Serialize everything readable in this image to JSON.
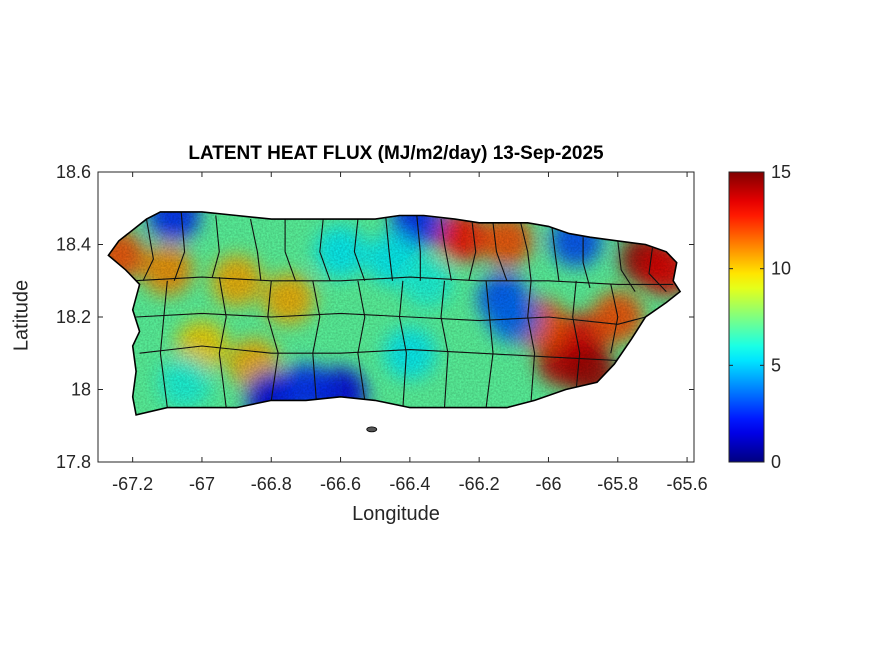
{
  "title": "LATENT HEAT FLUX (MJ/m2/day) 13-Sep-2025",
  "x_axis": {
    "label": "Longitude",
    "range": [
      -67.3,
      -65.58
    ],
    "ticks": [
      -67.2,
      -67,
      -66.8,
      -66.6,
      -66.4,
      -66.2,
      -66,
      -65.8,
      -65.6
    ],
    "tick_labels": [
      "-67.2",
      "-67",
      "-66.8",
      "-66.6",
      "-66.4",
      "-66.2",
      "-66",
      "-65.8",
      "-65.6"
    ]
  },
  "y_axis": {
    "label": "Latitude",
    "range": [
      17.8,
      18.6
    ],
    "ticks": [
      17.8,
      18.0,
      18.2,
      18.4,
      18.6
    ],
    "tick_labels": [
      "17.8",
      "18",
      "18.2",
      "18.4",
      "18.6"
    ]
  },
  "colorbar": {
    "colormap": "jet",
    "range": [
      0,
      15
    ],
    "ticks": [
      0,
      5,
      10,
      15
    ],
    "tick_labels": [
      "0",
      "5",
      "10",
      "15"
    ]
  },
  "map": {
    "region": "Puerto Rico",
    "background_value": 7,
    "outline": [
      [
        -67.27,
        18.37
      ],
      [
        -67.24,
        18.41
      ],
      [
        -67.2,
        18.44
      ],
      [
        -67.16,
        18.47
      ],
      [
        -67.12,
        18.49
      ],
      [
        -67.06,
        18.49
      ],
      [
        -67.0,
        18.49
      ],
      [
        -66.9,
        18.48
      ],
      [
        -66.8,
        18.47
      ],
      [
        -66.7,
        18.47
      ],
      [
        -66.6,
        18.47
      ],
      [
        -66.5,
        18.47
      ],
      [
        -66.43,
        18.48
      ],
      [
        -66.36,
        18.48
      ],
      [
        -66.27,
        18.47
      ],
      [
        -66.2,
        18.46
      ],
      [
        -66.14,
        18.46
      ],
      [
        -66.06,
        18.46
      ],
      [
        -66.0,
        18.45
      ],
      [
        -65.94,
        18.43
      ],
      [
        -65.88,
        18.42
      ],
      [
        -65.8,
        18.41
      ],
      [
        -65.72,
        18.4
      ],
      [
        -65.66,
        18.38
      ],
      [
        -65.63,
        18.35
      ],
      [
        -65.64,
        18.3
      ],
      [
        -65.62,
        18.27
      ],
      [
        -65.66,
        18.24
      ],
      [
        -65.72,
        18.2
      ],
      [
        -65.76,
        18.14
      ],
      [
        -65.81,
        18.07
      ],
      [
        -65.86,
        18.02
      ],
      [
        -65.95,
        18.0
      ],
      [
        -66.04,
        17.97
      ],
      [
        -66.12,
        17.95
      ],
      [
        -66.2,
        17.95
      ],
      [
        -66.3,
        17.95
      ],
      [
        -66.4,
        17.95
      ],
      [
        -66.5,
        17.97
      ],
      [
        -66.6,
        17.98
      ],
      [
        -66.7,
        17.97
      ],
      [
        -66.8,
        17.97
      ],
      [
        -66.9,
        17.95
      ],
      [
        -67.0,
        17.95
      ],
      [
        -67.1,
        17.95
      ],
      [
        -67.19,
        17.93
      ],
      [
        -67.2,
        17.98
      ],
      [
        -67.19,
        18.05
      ],
      [
        -67.2,
        18.12
      ],
      [
        -67.18,
        18.16
      ],
      [
        -67.2,
        18.22
      ],
      [
        -67.18,
        18.29
      ],
      [
        -67.22,
        18.33
      ],
      [
        -67.27,
        18.37
      ]
    ],
    "value_hotspots": [
      {
        "lon": -66.25,
        "lat": 18.42,
        "value": 13
      },
      {
        "lon": -66.12,
        "lat": 18.41,
        "value": 12
      },
      {
        "lon": -65.72,
        "lat": 18.36,
        "value": 14.5
      },
      {
        "lon": -65.66,
        "lat": 18.33,
        "value": 13.5
      },
      {
        "lon": -65.96,
        "lat": 18.08,
        "value": 14
      },
      {
        "lon": -65.9,
        "lat": 18.14,
        "value": 13.5
      },
      {
        "lon": -65.88,
        "lat": 18.05,
        "value": 14.5
      },
      {
        "lon": -66.02,
        "lat": 18.18,
        "value": 12
      },
      {
        "lon": -65.8,
        "lat": 18.2,
        "value": 12
      },
      {
        "lon": -67.24,
        "lat": 18.37,
        "value": 12
      },
      {
        "lon": -67.1,
        "lat": 18.33,
        "value": 11
      },
      {
        "lon": -66.9,
        "lat": 18.3,
        "value": 10.5
      },
      {
        "lon": -66.75,
        "lat": 18.25,
        "value": 10.5
      },
      {
        "lon": -66.85,
        "lat": 18.07,
        "value": 10.5
      },
      {
        "lon": -67.0,
        "lat": 18.12,
        "value": 10
      },
      {
        "lon": -66.8,
        "lat": 17.98,
        "value": 1.5
      },
      {
        "lon": -66.6,
        "lat": 17.99,
        "value": 1.5
      },
      {
        "lon": -66.7,
        "lat": 18.0,
        "value": 2.5
      },
      {
        "lon": -66.13,
        "lat": 18.25,
        "value": 3
      },
      {
        "lon": -66.1,
        "lat": 18.2,
        "value": 3.5
      },
      {
        "lon": -67.08,
        "lat": 18.48,
        "value": 2.5
      },
      {
        "lon": -66.38,
        "lat": 18.46,
        "value": 2.5
      },
      {
        "lon": -65.92,
        "lat": 18.41,
        "value": 3
      },
      {
        "lon": -66.6,
        "lat": 18.38,
        "value": 5.5
      },
      {
        "lon": -66.45,
        "lat": 18.36,
        "value": 5.5
      },
      {
        "lon": -66.35,
        "lat": 18.3,
        "value": 6
      },
      {
        "lon": -66.4,
        "lat": 18.1,
        "value": 5.5
      },
      {
        "lon": -67.05,
        "lat": 18.02,
        "value": 6
      }
    ],
    "municipality_boundaries": [
      [
        [
          -67.16,
          18.47
        ],
        [
          -67.14,
          18.36
        ],
        [
          -67.17,
          18.3
        ]
      ],
      [
        [
          -67.06,
          18.49
        ],
        [
          -67.05,
          18.38
        ],
        [
          -67.08,
          18.3
        ]
      ],
      [
        [
          -66.96,
          18.48
        ],
        [
          -66.95,
          18.38
        ],
        [
          -66.97,
          18.31
        ]
      ],
      [
        [
          -66.86,
          18.47
        ],
        [
          -66.84,
          18.38
        ],
        [
          -66.83,
          18.3
        ]
      ],
      [
        [
          -66.76,
          18.47
        ],
        [
          -66.76,
          18.38
        ],
        [
          -66.73,
          18.3
        ]
      ],
      [
        [
          -66.65,
          18.47
        ],
        [
          -66.66,
          18.38
        ],
        [
          -66.63,
          18.3
        ]
      ],
      [
        [
          -66.55,
          18.47
        ],
        [
          -66.56,
          18.38
        ],
        [
          -66.53,
          18.3
        ]
      ],
      [
        [
          -66.47,
          18.48
        ],
        [
          -66.46,
          18.38
        ],
        [
          -66.45,
          18.3
        ]
      ],
      [
        [
          -66.38,
          18.48
        ],
        [
          -66.37,
          18.38
        ],
        [
          -66.37,
          18.3
        ]
      ],
      [
        [
          -66.31,
          18.47
        ],
        [
          -66.3,
          18.4
        ],
        [
          -66.28,
          18.3
        ]
      ],
      [
        [
          -66.22,
          18.46
        ],
        [
          -66.21,
          18.38
        ],
        [
          -66.23,
          18.3
        ]
      ],
      [
        [
          -66.16,
          18.46
        ],
        [
          -66.15,
          18.38
        ],
        [
          -66.12,
          18.3
        ]
      ],
      [
        [
          -66.08,
          18.46
        ],
        [
          -66.06,
          18.38
        ],
        [
          -66.05,
          18.3
        ]
      ],
      [
        [
          -65.99,
          18.45
        ],
        [
          -65.98,
          18.37
        ],
        [
          -65.97,
          18.3
        ]
      ],
      [
        [
          -65.9,
          18.42
        ],
        [
          -65.9,
          18.35
        ],
        [
          -65.88,
          18.28
        ]
      ],
      [
        [
          -65.8,
          18.41
        ],
        [
          -65.79,
          18.33
        ],
        [
          -65.75,
          18.27
        ]
      ],
      [
        [
          -65.7,
          18.39
        ],
        [
          -65.71,
          18.32
        ],
        [
          -65.66,
          18.27
        ]
      ],
      [
        [
          -67.2,
          18.3
        ],
        [
          -67.0,
          18.31
        ],
        [
          -66.8,
          18.3
        ],
        [
          -66.6,
          18.3
        ],
        [
          -66.4,
          18.31
        ],
        [
          -66.2,
          18.3
        ],
        [
          -66.0,
          18.3
        ],
        [
          -65.8,
          18.29
        ],
        [
          -65.64,
          18.29
        ]
      ],
      [
        [
          -67.19,
          18.2
        ],
        [
          -67.0,
          18.21
        ],
        [
          -66.8,
          18.2
        ],
        [
          -66.6,
          18.21
        ],
        [
          -66.4,
          18.2
        ],
        [
          -66.2,
          18.19
        ],
        [
          -66.0,
          18.2
        ],
        [
          -65.8,
          18.18
        ],
        [
          -65.72,
          18.2
        ]
      ],
      [
        [
          -67.18,
          18.1
        ],
        [
          -67.0,
          18.12
        ],
        [
          -66.8,
          18.1
        ],
        [
          -66.6,
          18.1
        ],
        [
          -66.4,
          18.11
        ],
        [
          -66.2,
          18.1
        ],
        [
          -66.0,
          18.09
        ],
        [
          -65.8,
          18.08
        ]
      ],
      [
        [
          -67.1,
          18.3
        ],
        [
          -67.11,
          18.2
        ],
        [
          -67.12,
          18.1
        ],
        [
          -67.1,
          17.95
        ]
      ],
      [
        [
          -66.95,
          18.31
        ],
        [
          -66.93,
          18.2
        ],
        [
          -66.95,
          18.1
        ],
        [
          -66.93,
          17.95
        ]
      ],
      [
        [
          -66.8,
          18.3
        ],
        [
          -66.81,
          18.2
        ],
        [
          -66.78,
          18.1
        ],
        [
          -66.8,
          17.97
        ]
      ],
      [
        [
          -66.68,
          18.3
        ],
        [
          -66.66,
          18.2
        ],
        [
          -66.68,
          18.1
        ],
        [
          -66.67,
          17.97
        ]
      ],
      [
        [
          -66.55,
          18.3
        ],
        [
          -66.53,
          18.2
        ],
        [
          -66.55,
          18.1
        ],
        [
          -66.53,
          17.97
        ]
      ],
      [
        [
          -66.42,
          18.3
        ],
        [
          -66.43,
          18.2
        ],
        [
          -66.41,
          18.1
        ],
        [
          -66.42,
          17.95
        ]
      ],
      [
        [
          -66.3,
          18.3
        ],
        [
          -66.31,
          18.2
        ],
        [
          -66.29,
          18.1
        ],
        [
          -66.3,
          17.95
        ]
      ],
      [
        [
          -66.18,
          18.3
        ],
        [
          -66.17,
          18.2
        ],
        [
          -66.16,
          18.1
        ],
        [
          -66.18,
          17.95
        ]
      ],
      [
        [
          -66.05,
          18.3
        ],
        [
          -66.06,
          18.2
        ],
        [
          -66.04,
          18.1
        ],
        [
          -66.05,
          17.97
        ]
      ],
      [
        [
          -65.92,
          18.3
        ],
        [
          -65.93,
          18.2
        ],
        [
          -65.91,
          18.1
        ],
        [
          -65.92,
          18.0
        ]
      ],
      [
        [
          -65.82,
          18.29
        ],
        [
          -65.8,
          18.2
        ],
        [
          -65.82,
          18.1
        ]
      ]
    ],
    "islands": [
      {
        "lon": -66.51,
        "lat": 17.89
      }
    ]
  }
}
